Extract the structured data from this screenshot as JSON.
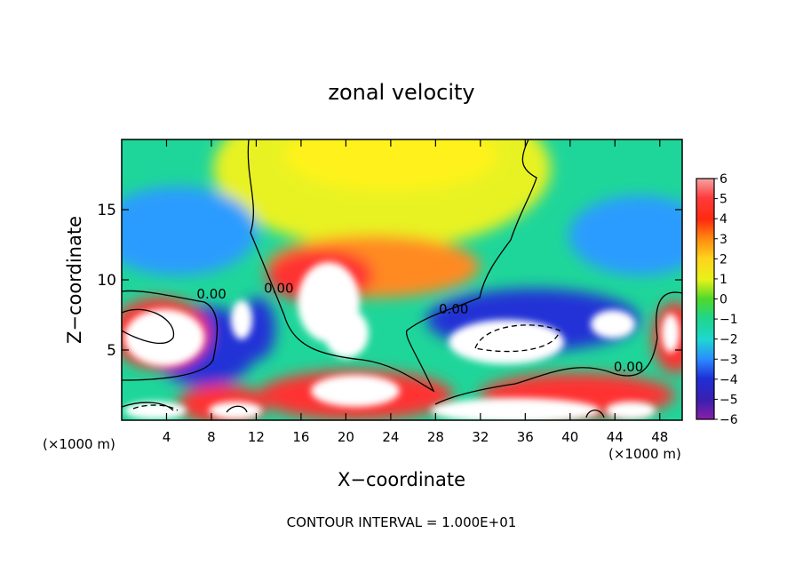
{
  "chart_data": {
    "type": "heatmap",
    "title": "zonal velocity",
    "xlabel": "X−coordinate",
    "ylabel": "Z−coordinate",
    "x_unit_left": "(×1000 m)",
    "x_unit_right": "(×1000 m)",
    "footer": "CONTOUR INTERVAL = 1.000E+01",
    "xlim": [
      0,
      50
    ],
    "ylim": [
      0,
      20
    ],
    "x_ticks": [
      4,
      8,
      12,
      16,
      20,
      24,
      28,
      32,
      36,
      40,
      44,
      48
    ],
    "y_ticks": [
      5,
      10,
      15
    ],
    "colorbar": {
      "ticks": [
        6,
        5,
        4,
        3,
        2,
        1,
        0,
        -1,
        -2,
        -3,
        -4,
        -5,
        -6
      ],
      "tick_labels": [
        "6",
        "5",
        "4",
        "3",
        "2",
        "1",
        "0",
        "−1",
        "−2",
        "−3",
        "−4",
        "−5",
        "−6"
      ],
      "colors": [
        "#f7b0b0",
        "#ff2a2a",
        "#ff3b1f",
        "#ff8a1f",
        "#ffd21c",
        "#e6f21b",
        "#7fe22a",
        "#1fd16a",
        "#1fd6d2",
        "#2a9cff",
        "#1f2fd6",
        "#2b1fb0",
        "#8a1fa8"
      ]
    },
    "contour_labels": [
      {
        "text": "0.00",
        "x": 7.8,
        "y": 9.0
      },
      {
        "text": "0.00",
        "x": 13.8,
        "y": 9.4
      },
      {
        "text": "0.00",
        "x": 29.4,
        "y": 7.9
      },
      {
        "text": "0.00",
        "x": 45.0,
        "y": 3.8
      }
    ]
  }
}
